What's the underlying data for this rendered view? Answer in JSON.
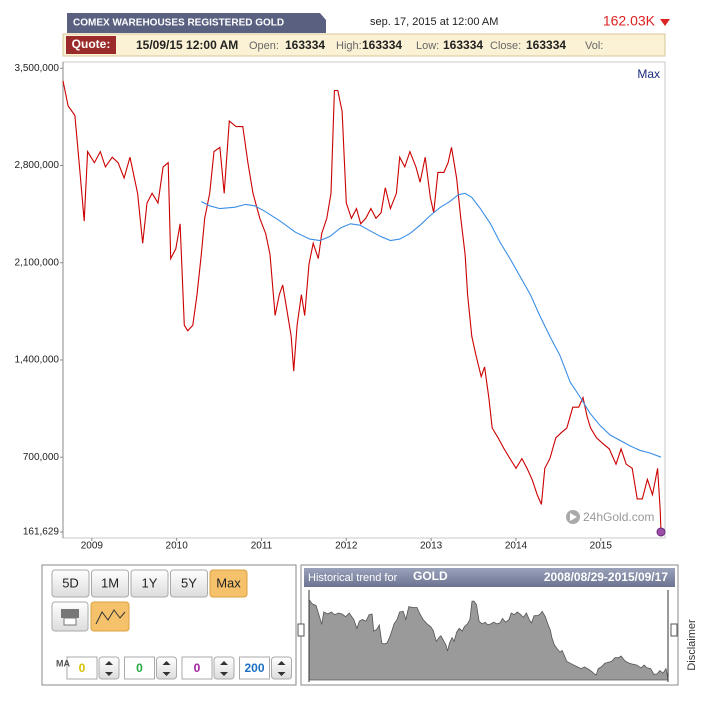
{
  "header": {
    "title": "COMEX WAREHOUSES REGISTERED GOLD",
    "datetime": "sep. 17, 2015 at 12:00 AM",
    "last": "162.03K"
  },
  "quote": {
    "label": "Quote:",
    "date": "15/09/15 12:00 AM",
    "fields": [
      {
        "label": "Open:",
        "value": 163334
      },
      {
        "label": "High:",
        "value": 163334
      },
      {
        "label": "Low:",
        "value": 163334
      },
      {
        "label": "Close:",
        "value": 163334
      },
      {
        "label": "Vol:"
      }
    ]
  },
  "chart_data": {
    "type": "line",
    "range_label": "Max",
    "watermark": "24hGold.com",
    "xlim": [
      2008.66,
      2015.71
    ],
    "xticks": [
      2009,
      2010,
      2011,
      2012,
      2013,
      2014,
      2015
    ],
    "ylim": [
      161629,
      3545000
    ],
    "yticks": [
      {
        "value": 161629,
        "label": "161,629"
      },
      {
        "value": 700000,
        "label": "700,000"
      },
      {
        "value": 1400000,
        "label": "1,400,000"
      },
      {
        "value": 2100000,
        "label": "2,100,000"
      },
      {
        "value": 2800000,
        "label": "2,800,000"
      },
      {
        "value": 3500000,
        "label": "3,500,000"
      }
    ],
    "series": [
      {
        "color": "#cc0000",
        "x": [
          2008.66,
          2008.72,
          2008.8,
          2008.86,
          2008.91,
          2008.95,
          2009.03,
          2009.1,
          2009.16,
          2009.24,
          2009.31,
          2009.38,
          2009.45,
          2009.54,
          2009.6,
          2009.65,
          2009.71,
          2009.78,
          2009.84,
          2009.9,
          2009.93,
          2009.99,
          2010.04,
          2010.09,
          2010.13,
          2010.19,
          2010.24,
          2010.29,
          2010.33,
          2010.39,
          2010.44,
          2010.51,
          2010.56,
          2010.62,
          2010.7,
          2010.78,
          2010.84,
          2010.9,
          2010.98,
          2011.05,
          2011.1,
          2011.16,
          2011.21,
          2011.25,
          2011.3,
          2011.35,
          2011.38,
          2011.42,
          2011.47,
          2011.51,
          2011.56,
          2011.61,
          2011.67,
          2011.71,
          2011.77,
          2011.82,
          2011.86,
          2011.9,
          2011.95,
          2012.0,
          2012.06,
          2012.12,
          2012.17,
          2012.23,
          2012.29,
          2012.35,
          2012.41,
          2012.46,
          2012.52,
          2012.59,
          2012.63,
          2012.69,
          2012.75,
          2012.82,
          2012.87,
          2012.93,
          2012.99,
          2013.03,
          2013.08,
          2013.15,
          2013.2,
          2013.24,
          2013.3,
          2013.35,
          2013.4,
          2013.43,
          2013.48,
          2013.53,
          2013.59,
          2013.63,
          2013.68,
          2013.72,
          2013.79,
          2013.86,
          2013.93,
          2014.0,
          2014.07,
          2014.13,
          2014.19,
          2014.25,
          2014.3,
          2014.34,
          2014.4,
          2014.47,
          2014.54,
          2014.6,
          2014.67,
          2014.74,
          2014.79,
          2014.84,
          2014.88,
          2014.95,
          2015.02,
          2015.1,
          2015.18,
          2015.24,
          2015.3,
          2015.37,
          2015.43,
          2015.49,
          2015.55,
          2015.61,
          2015.67,
          2015.7,
          2015.71
        ],
        "values": [
          3410000,
          3230000,
          3160000,
          2750000,
          2400000,
          2900000,
          2820000,
          2900000,
          2790000,
          2860000,
          2820000,
          2710000,
          2860000,
          2600000,
          2240000,
          2530000,
          2600000,
          2530000,
          2790000,
          2820000,
          2130000,
          2200000,
          2380000,
          1650000,
          1610000,
          1650000,
          1870000,
          2160000,
          2420000,
          2600000,
          2900000,
          2930000,
          2600000,
          3120000,
          3080000,
          3080000,
          2820000,
          2600000,
          2420000,
          2310000,
          2160000,
          1720000,
          1870000,
          1940000,
          1760000,
          1570000,
          1320000,
          1650000,
          1870000,
          1720000,
          2090000,
          2240000,
          2130000,
          2310000,
          2420000,
          2600000,
          3340000,
          3340000,
          3190000,
          2530000,
          2420000,
          2490000,
          2380000,
          2420000,
          2490000,
          2420000,
          2460000,
          2640000,
          2490000,
          2600000,
          2860000,
          2790000,
          2900000,
          2790000,
          2680000,
          2860000,
          2570000,
          2460000,
          2750000,
          2750000,
          2820000,
          2930000,
          2710000,
          2420000,
          2160000,
          1870000,
          1570000,
          1430000,
          1280000,
          1350000,
          1130000,
          910000,
          840000,
          760000,
          690000,
          620000,
          690000,
          620000,
          540000,
          430000,
          360000,
          620000,
          690000,
          840000,
          880000,
          910000,
          1060000,
          1060000,
          1130000,
          990000,
          910000,
          840000,
          800000,
          760000,
          650000,
          760000,
          650000,
          620000,
          400000,
          400000,
          540000,
          430000,
          620000,
          320000,
          162030
        ]
      },
      {
        "color": "#3a8ee6",
        "x": [
          2010.29,
          2010.39,
          2010.51,
          2010.69,
          2010.81,
          2010.92,
          2011.04,
          2011.22,
          2011.4,
          2011.57,
          2011.69,
          2011.81,
          2011.93,
          2012.05,
          2012.16,
          2012.28,
          2012.4,
          2012.52,
          2012.63,
          2012.75,
          2012.87,
          2012.99,
          2013.11,
          2013.22,
          2013.32,
          2013.4,
          2013.48,
          2013.58,
          2013.7,
          2013.81,
          2013.93,
          2014.05,
          2014.17,
          2014.28,
          2014.4,
          2014.52,
          2014.64,
          2014.76,
          2014.87,
          2014.99,
          2015.11,
          2015.23,
          2015.35,
          2015.46,
          2015.58,
          2015.71
        ],
        "values": [
          2540000,
          2510000,
          2490000,
          2500000,
          2520000,
          2510000,
          2470000,
          2400000,
          2320000,
          2270000,
          2260000,
          2290000,
          2350000,
          2380000,
          2370000,
          2330000,
          2290000,
          2260000,
          2270000,
          2310000,
          2370000,
          2440000,
          2500000,
          2540000,
          2590000,
          2600000,
          2570000,
          2490000,
          2380000,
          2250000,
          2130000,
          2000000,
          1870000,
          1720000,
          1570000,
          1430000,
          1240000,
          1130000,
          1020000,
          930000,
          860000,
          820000,
          780000,
          750000,
          730000,
          700000
        ]
      }
    ]
  },
  "controls": {
    "periods": [
      "5D",
      "1M",
      "1Y",
      "5Y",
      "Max"
    ],
    "ma_label": "MA",
    "ma_values": [
      0,
      0,
      0,
      200
    ]
  },
  "trend": {
    "label": "Historical trend for",
    "symbol": "GOLD",
    "range": "2008/08/29-2015/09/17",
    "disclaimer": "Disclaimer"
  }
}
